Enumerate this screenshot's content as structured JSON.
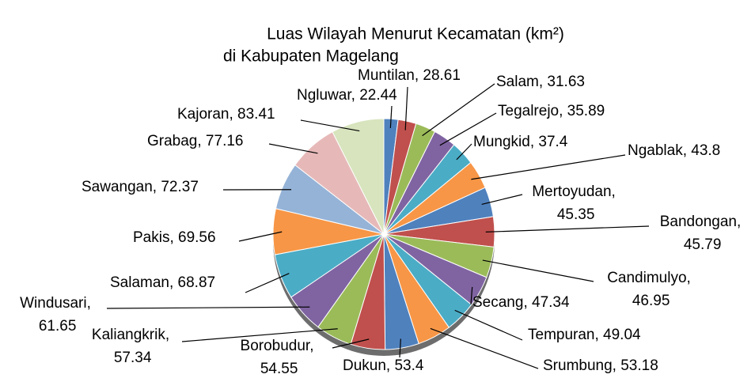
{
  "chart_data": {
    "type": "pie",
    "title": "Luas Wilayah Menurut Kecamatan (km²)",
    "subtitle": "di Kabupaten Magelang",
    "categories": [
      "Ngluwar",
      "Muntilan",
      "Salam",
      "Tegalrejo",
      "Mungkid",
      "Ngablak",
      "Mertoyudan",
      "Bandongan",
      "Candimulyo",
      "Secang",
      "Tempuran",
      "Srumbung",
      "Dukun",
      "Borobudur",
      "Kaliangkrik",
      "Windusari",
      "Salaman",
      "Pakis",
      "Sawangan",
      "Grabag",
      "Kajoran"
    ],
    "values": [
      22.44,
      28.61,
      31.63,
      35.89,
      37.4,
      43.8,
      45.35,
      45.79,
      46.95,
      47.34,
      49.04,
      53.18,
      53.4,
      54.55,
      57.34,
      61.65,
      68.87,
      69.56,
      72.37,
      77.16,
      83.41
    ],
    "value_labels": [
      "Ngluwar, 22.44",
      "Muntilan, 28.61",
      "Salam, 31.63",
      "Tegalrejo, 35.89",
      "Mungkid, 37.4",
      "Ngablak, 43.8",
      "Mertoyudan, 45.35",
      "Bandongan, 45.79",
      "Candimulyo, 46.95",
      "Secang, 47.34",
      "Tempuran, 49.04",
      "Srumbung, 53.18",
      "Dukun, 53.4",
      "Borobudur, 54.55",
      "Kaliangkrik, 57.34",
      "Windusari, 61.65",
      "Salaman, 68.87",
      "Pakis, 69.56",
      "Sawangan, 72.37",
      "Grabag, 77.16",
      "Kajoran, 83.41"
    ],
    "colors": [
      "#4f81bd",
      "#c0504d",
      "#9bbb59",
      "#8064a2",
      "#4bacc6",
      "#f79646",
      "#4f81bd",
      "#c0504d",
      "#9bbb59",
      "#8064a2",
      "#4bacc6",
      "#f79646",
      "#4f81bd",
      "#c0504d",
      "#9bbb59",
      "#8064a2",
      "#4bacc6",
      "#f79646",
      "#95b3d7",
      "#e6b9b8",
      "#d7e4bd"
    ]
  }
}
